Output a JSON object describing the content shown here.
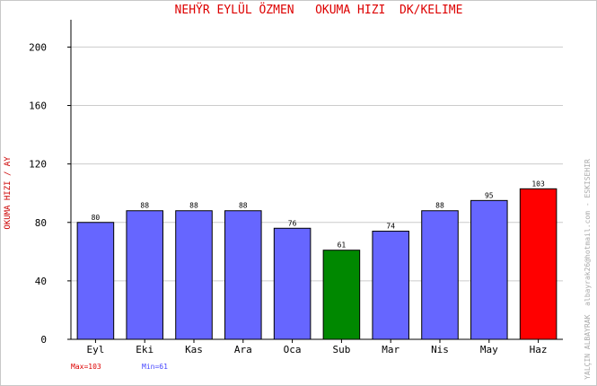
{
  "chart_data": {
    "type": "bar",
    "title": "NEHŸR EYLÜL ÖZMEN   OKUMA HIZI  DK/KELIME",
    "ylabel": "OKUMA HIZI / AY",
    "xlabel": "",
    "categories": [
      "Eyl",
      "Eki",
      "Kas",
      "Ara",
      "Oca",
      "Sub",
      "Mar",
      "Nis",
      "May",
      "Haz"
    ],
    "values": [
      80,
      88,
      88,
      88,
      76,
      61,
      74,
      88,
      95,
      103
    ],
    "ylim": [
      0,
      215
    ],
    "yticks": [
      0,
      40,
      80,
      120,
      160,
      200
    ],
    "grid": true,
    "max_label": "Max=103",
    "min_label": "Min=61",
    "side_note": "YALÇIN ALBAYRAK  albayrak26@hotmail.com - ESKISEHIR",
    "colors": {
      "default_bar": "#6666ff",
      "max_bar": "#ff0000",
      "min_bar": "#008800",
      "title": "#dd0000",
      "ylabel": "#cc0000",
      "max_text": "#dd0000",
      "min_text": "#4444ff",
      "side_note": "#aaaaaa"
    }
  }
}
